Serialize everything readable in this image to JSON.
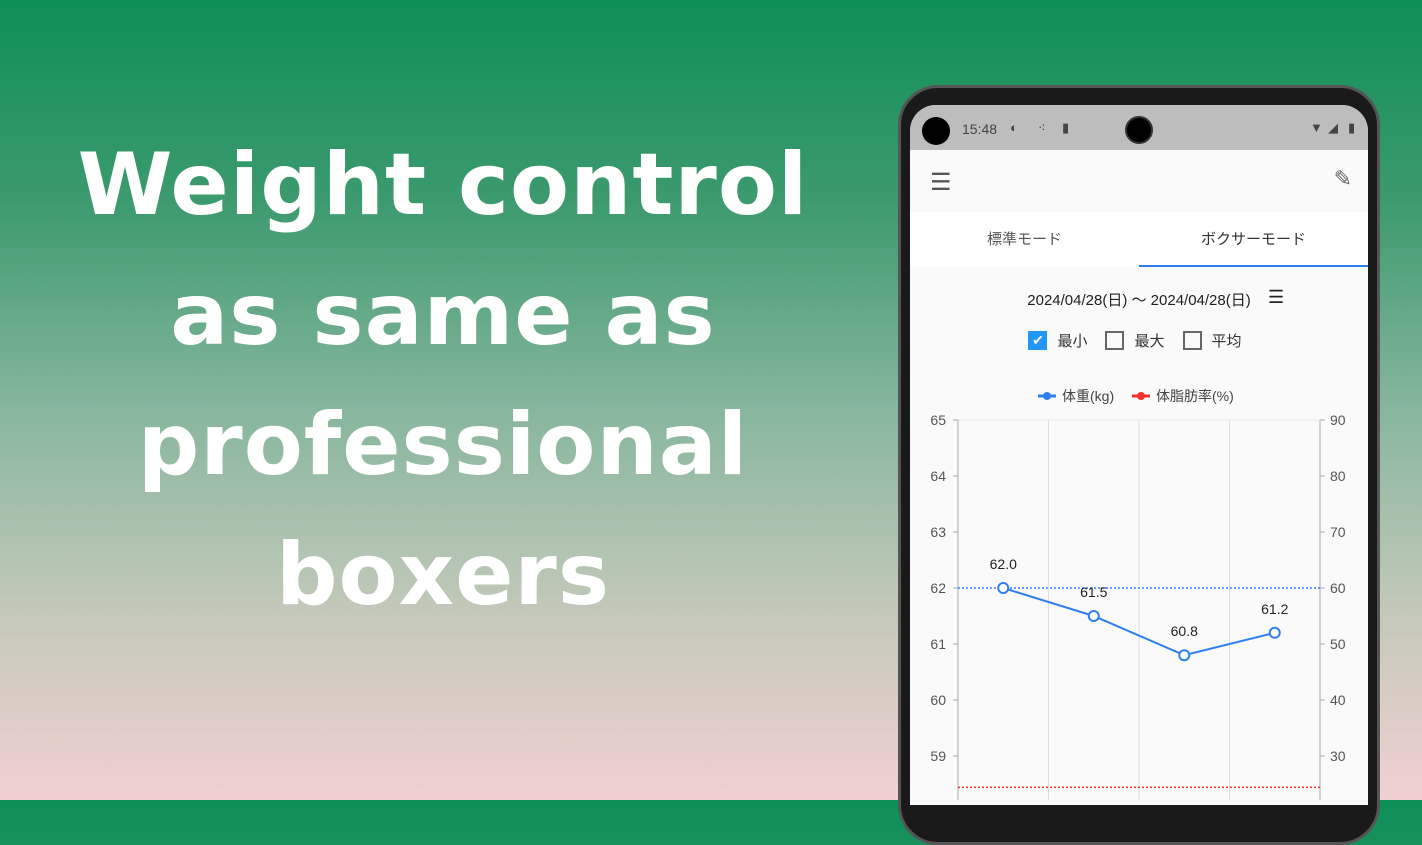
{
  "headline": [
    "Weight control",
    "as same as",
    "professional",
    "boxers"
  ],
  "status": {
    "time": "15:48"
  },
  "tabs": [
    {
      "label": "標準モード"
    },
    {
      "label": "ボクサーモード",
      "active": true
    }
  ],
  "range": "2024/04/28(日) 〜 2024/04/28(日)",
  "checks": [
    {
      "label": "最小",
      "checked": true
    },
    {
      "label": "最大",
      "checked": false
    },
    {
      "label": "平均",
      "checked": false
    }
  ],
  "colors": {
    "accent": "#2f7fef",
    "weight": "#2f7fef",
    "bodyfat": "#f03030"
  },
  "chart_data": {
    "type": "line",
    "legend": [
      "体重(kg)",
      "体脂肪率(%)"
    ],
    "legend_position": "top",
    "y_left": {
      "ticks": [
        59,
        60,
        61,
        62,
        63,
        64,
        65
      ],
      "range": [
        58.4,
        65
      ]
    },
    "y_right": {
      "ticks": [
        30,
        40,
        50,
        60,
        70,
        80,
        90
      ],
      "range": [
        24,
        90
      ]
    },
    "series": [
      {
        "name": "体重(kg)",
        "values": [
          62.0,
          61.5,
          60.8,
          61.2
        ],
        "labels": [
          "62.0",
          "61.5",
          "60.8",
          "61.2"
        ]
      }
    ],
    "reference_lines": [
      {
        "series": "体重(kg)",
        "value": 62
      },
      {
        "series": "体脂肪率(%)",
        "value": 24.4
      }
    ],
    "grid": true
  }
}
